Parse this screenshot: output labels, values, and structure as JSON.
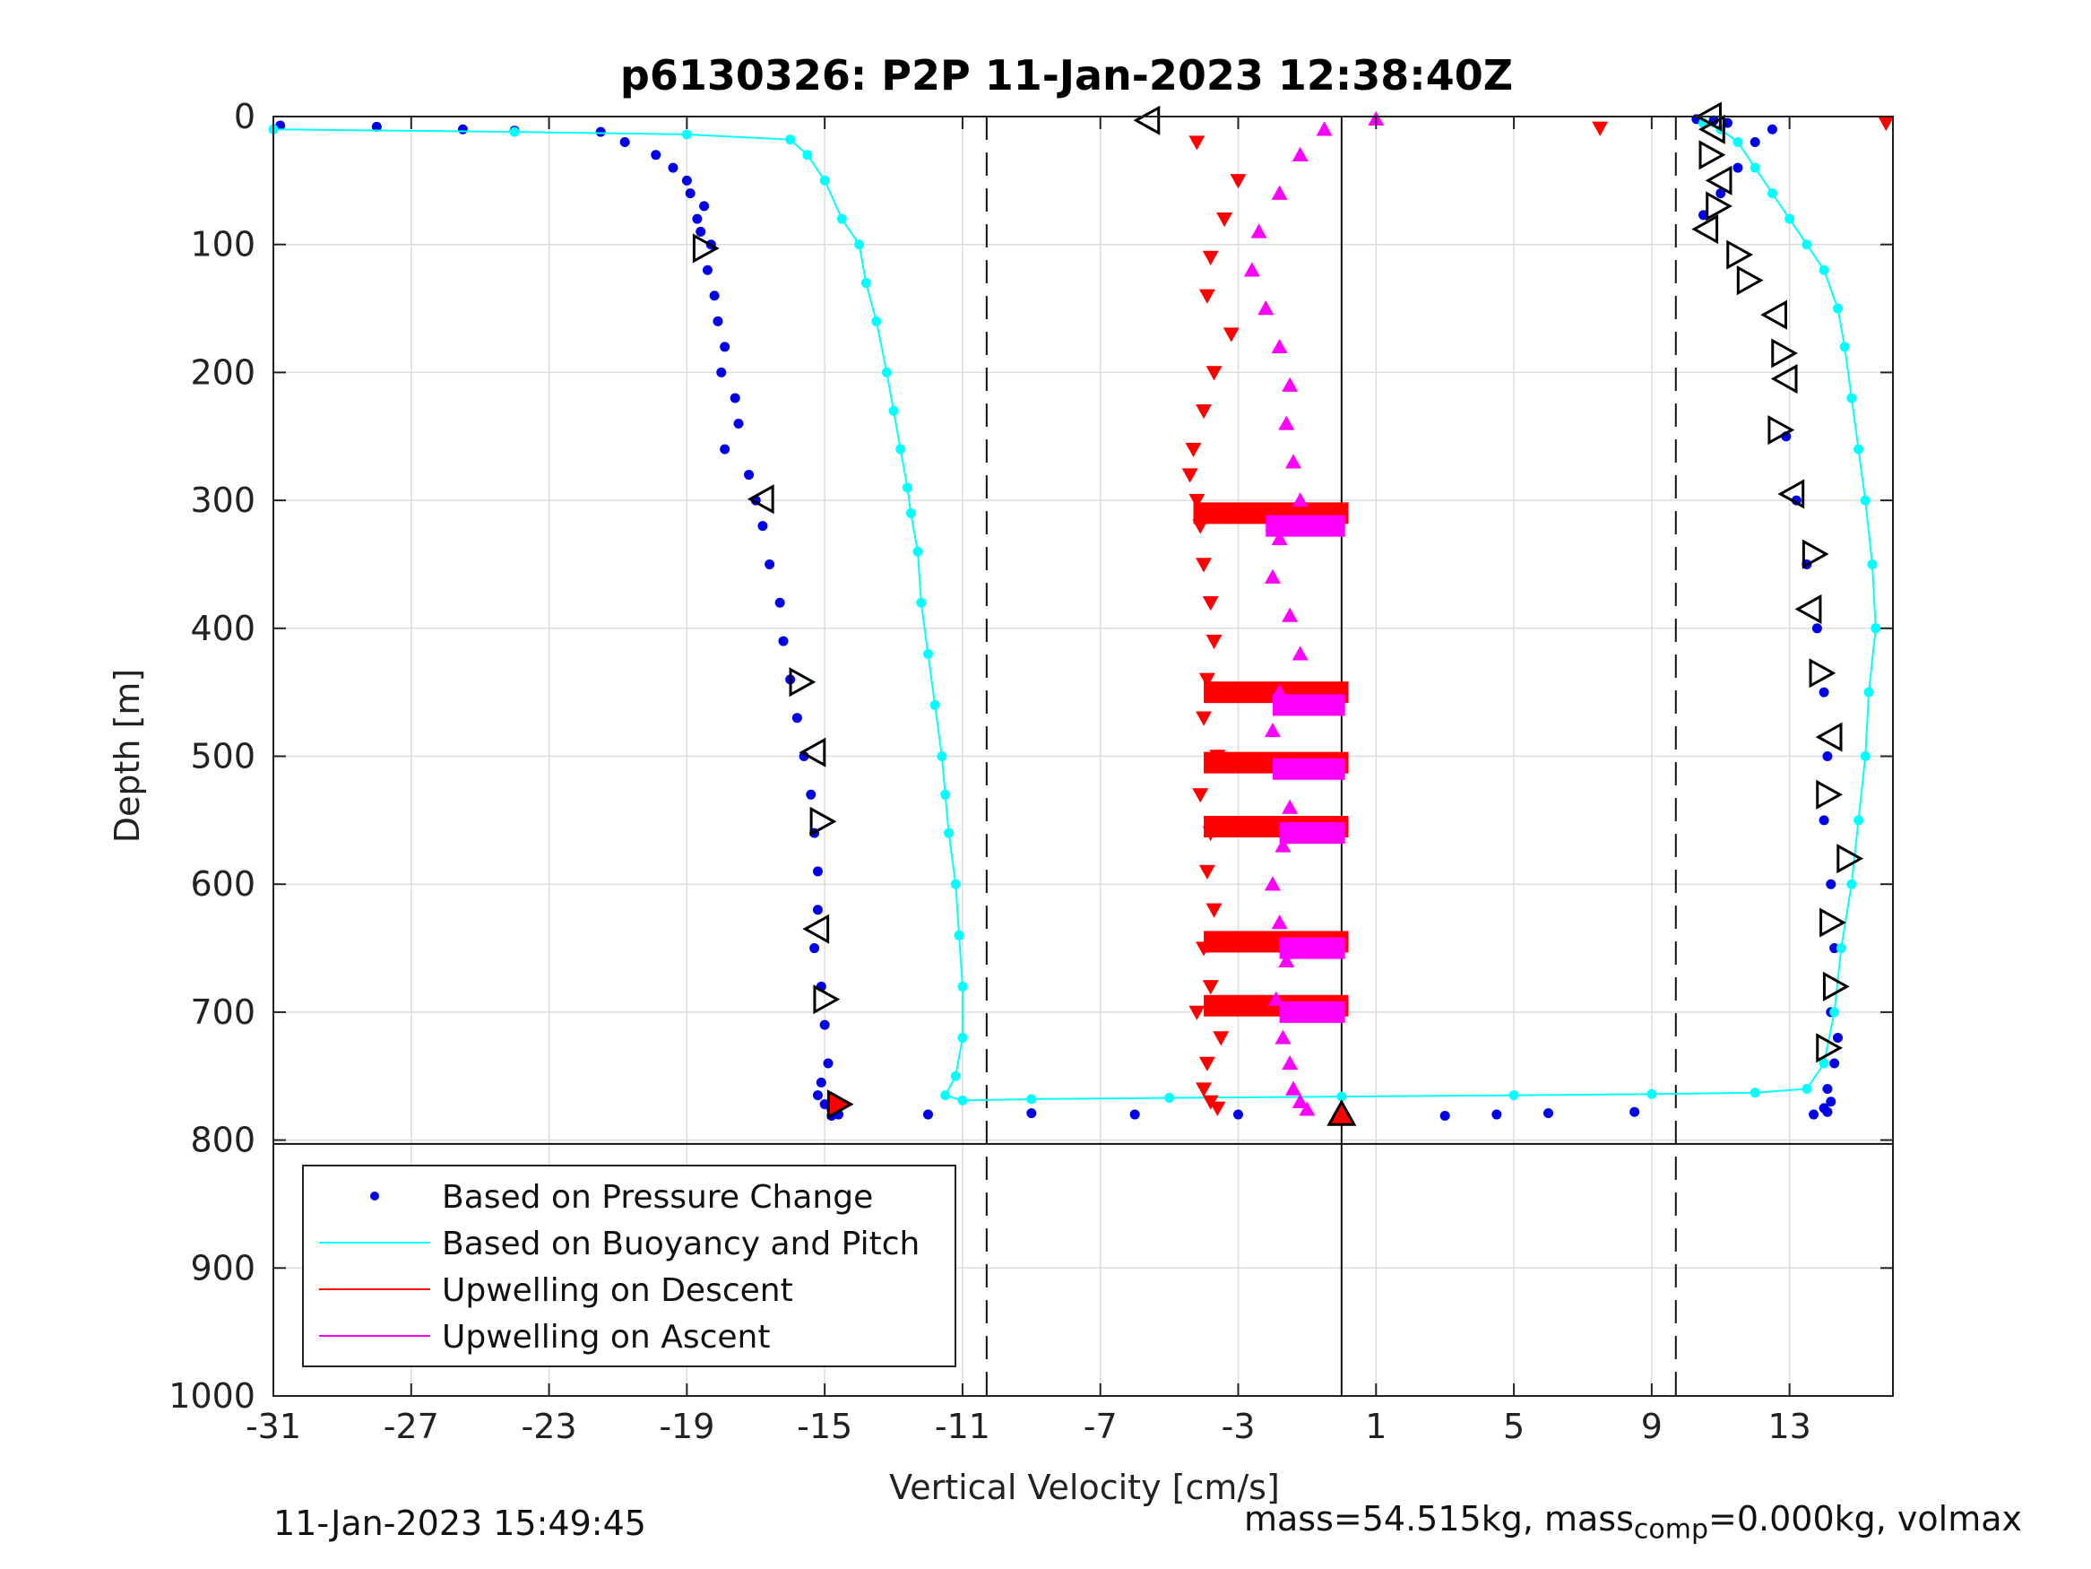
{
  "chart_data": {
    "type": "scatter",
    "title": "p6130326: P2P 11-Jan-2023 12:38:40Z",
    "xlabel": "Vertical Velocity [cm/s]",
    "ylabel": "Depth [m]",
    "xlim": [
      -31,
      16
    ],
    "ylim": [
      0,
      1000
    ],
    "y_reversed": true,
    "grid": true,
    "x_ticks": [
      -31,
      -27,
      -23,
      -19,
      -15,
      -11,
      -7,
      -3,
      1,
      5,
      9,
      13
    ],
    "x_tick_labels": [
      "-31",
      "-27",
      "-23",
      "-19",
      "-15",
      "-11",
      "-7",
      "-3",
      "1",
      "5",
      "9",
      "13"
    ],
    "y_ticks": [
      0,
      100,
      200,
      300,
      400,
      500,
      600,
      700,
      800,
      900,
      1000
    ],
    "y_tick_labels": [
      "0",
      "100",
      "200",
      "300",
      "400",
      "500",
      "600",
      "700",
      "800",
      "900",
      "1000"
    ],
    "reference_lines": {
      "dashed_x": [
        -10.3,
        9.7
      ],
      "solid_x": [
        0
      ]
    },
    "bottom_line_depth": 803,
    "legend_position": "bottom-left",
    "legend": [
      "Based on Pressure Change",
      "Based on Buoyancy and Pitch",
      "Upwelling on Descent",
      "Upwelling on Ascent"
    ],
    "colors": {
      "pressure": "#0000e6",
      "buoyancy": "#00ffff",
      "descent": "#ff0000",
      "ascent": "#ff00ff"
    },
    "series": [
      {
        "name": "Based on Pressure Change",
        "style": "dots",
        "x": [
          -30.8,
          -28.0,
          -25.5,
          -24.0,
          -21.5,
          -20.8,
          -19.9,
          -19.4,
          -19.0,
          -18.9,
          -18.5,
          -18.7,
          -18.6,
          -18.3,
          -18.4,
          -18.2,
          -18.1,
          -17.9,
          -18.0,
          -17.6,
          -17.5,
          -17.9,
          -17.2,
          -17.0,
          -16.8,
          -16.6,
          -16.3,
          -16.2,
          -16.0,
          -15.8,
          -15.6,
          -15.4,
          -15.3,
          -15.2,
          -15.2,
          -15.3,
          -15.1,
          -15.0,
          -14.9,
          -15.1,
          -15.2,
          -15.0,
          -14.8,
          -14.7,
          -14.7,
          -14.6,
          -14.8,
          -12.0,
          -9.0,
          -6.0,
          -3.0,
          0.0,
          3.0,
          4.5,
          6.0,
          8.5,
          10.5,
          11.0,
          11.5,
          12.0,
          12.5,
          12.9,
          13.2,
          13.5,
          13.8,
          14.0,
          14.1,
          14.0,
          14.2,
          14.3,
          14.2,
          14.4,
          14.3,
          14.1,
          14.2,
          14.0,
          14.1,
          13.7,
          11.2,
          10.8,
          10.3
        ],
        "y": [
          7,
          8,
          10,
          11,
          12,
          20,
          30,
          40,
          50,
          60,
          70,
          80,
          90,
          100,
          120,
          140,
          160,
          180,
          200,
          220,
          240,
          260,
          280,
          300,
          320,
          350,
          380,
          410,
          440,
          470,
          500,
          530,
          560,
          590,
          620,
          650,
          680,
          710,
          740,
          755,
          765,
          772,
          776,
          778,
          779,
          780,
          781,
          780,
          779,
          780,
          780,
          781,
          781,
          780,
          779,
          778,
          77,
          60,
          40,
          20,
          10,
          250,
          300,
          350,
          400,
          450,
          500,
          550,
          600,
          650,
          700,
          720,
          740,
          760,
          770,
          775,
          778,
          780,
          5,
          3,
          2
        ]
      },
      {
        "name": "Based on Buoyancy and Pitch",
        "style": "line+dots",
        "x": [
          -31.0,
          -24.0,
          -19.0,
          -16.0,
          -15.5,
          -15.0,
          -14.5,
          -14.0,
          -13.8,
          -13.5,
          -13.2,
          -13.0,
          -12.8,
          -12.6,
          -12.5,
          -12.3,
          -12.2,
          -12.0,
          -11.8,
          -11.6,
          -11.5,
          -11.4,
          -11.2,
          -11.1,
          -11.0,
          -11.0,
          -11.2,
          -11.5,
          -11.0,
          -9.0,
          -5.0,
          0.0,
          5.0,
          9.0,
          12.0,
          13.5,
          14.0,
          14.3,
          14.5,
          14.8,
          15.0,
          15.2,
          15.3,
          15.5,
          15.4,
          15.2,
          15.0,
          14.8,
          14.6,
          14.4,
          14.0,
          13.5,
          13.0,
          12.5,
          12.0,
          11.5,
          11.0,
          10.5
        ],
        "y": [
          10,
          12,
          14,
          18,
          30,
          50,
          80,
          100,
          130,
          160,
          200,
          230,
          260,
          290,
          310,
          340,
          380,
          420,
          460,
          500,
          530,
          560,
          600,
          640,
          680,
          720,
          750,
          765,
          769,
          768,
          767,
          766,
          765,
          764,
          763,
          760,
          740,
          700,
          650,
          600,
          550,
          500,
          450,
          400,
          350,
          300,
          260,
          220,
          180,
          150,
          120,
          100,
          80,
          60,
          40,
          20,
          10,
          5
        ]
      },
      {
        "name": "Upwelling on Descent",
        "style": "down-triangles",
        "x": [
          -4.2,
          -3.0,
          -3.4,
          -3.8,
          -3.9,
          -3.2,
          -3.7,
          -4.0,
          -4.3,
          -4.4,
          -4.2,
          -4.1,
          -4.0,
          -3.8,
          -3.7,
          -3.9,
          -4.0,
          -3.6,
          -4.1,
          -3.8,
          -3.9,
          -3.7,
          -4.0,
          -3.8,
          -4.2,
          -3.5,
          -3.9,
          -4.0,
          -3.8,
          -3.6,
          7.5,
          15.8
        ],
        "y": [
          20,
          50,
          80,
          110,
          140,
          170,
          200,
          230,
          260,
          280,
          300,
          320,
          350,
          380,
          410,
          440,
          470,
          500,
          530,
          560,
          590,
          620,
          650,
          680,
          700,
          720,
          740,
          760,
          770,
          775,
          9,
          5
        ],
        "bands": [
          {
            "depth": 310,
            "x_from": -4.3,
            "x_to": 0.2
          },
          {
            "depth": 450,
            "x_from": -4.0,
            "x_to": 0.2
          },
          {
            "depth": 505,
            "x_from": -4.0,
            "x_to": 0.2
          },
          {
            "depth": 555,
            "x_from": -4.0,
            "x_to": 0.2
          },
          {
            "depth": 645,
            "x_from": -4.0,
            "x_to": 0.2
          },
          {
            "depth": 695,
            "x_from": -4.0,
            "x_to": 0.2
          }
        ]
      },
      {
        "name": "Upwelling on Ascent",
        "style": "up-triangles",
        "x": [
          1.0,
          -0.5,
          -1.2,
          -1.8,
          -2.4,
          -2.6,
          -2.2,
          -1.8,
          -1.5,
          -1.6,
          -1.4,
          -1.2,
          -1.8,
          -2.0,
          -1.5,
          -1.2,
          -1.8,
          -2.0,
          -1.6,
          -1.5,
          -1.7,
          -2.0,
          -1.8,
          -1.6,
          -1.9,
          -1.7,
          -1.5,
          -1.4,
          -1.2,
          -1.0
        ],
        "y": [
          2,
          10,
          30,
          60,
          90,
          120,
          150,
          180,
          210,
          240,
          270,
          300,
          330,
          360,
          390,
          420,
          450,
          480,
          510,
          540,
          570,
          600,
          630,
          660,
          690,
          720,
          740,
          760,
          770,
          776
        ],
        "bands": [
          {
            "depth": 320,
            "x_from": -2.2,
            "x_to": 0.1
          },
          {
            "depth": 460,
            "x_from": -2.0,
            "x_to": 0.1
          },
          {
            "depth": 510,
            "x_from": -2.0,
            "x_to": 0.1
          },
          {
            "depth": 560,
            "x_from": -1.8,
            "x_to": 0.1
          },
          {
            "depth": 650,
            "x_from": -1.8,
            "x_to": 0.1
          },
          {
            "depth": 700,
            "x_from": -1.8,
            "x_to": 0.1
          }
        ]
      }
    ],
    "markers": [
      {
        "shape": "tri-left",
        "x": -5.6,
        "y": 3,
        "fill": "none"
      },
      {
        "shape": "tri-right",
        "x": -18.5,
        "y": 103,
        "fill": "none"
      },
      {
        "shape": "tri-left",
        "x": -16.8,
        "y": 299,
        "fill": "none"
      },
      {
        "shape": "tri-right",
        "x": -15.7,
        "y": 442,
        "fill": "none"
      },
      {
        "shape": "tri-left",
        "x": -15.3,
        "y": 497,
        "fill": "none"
      },
      {
        "shape": "tri-right",
        "x": -15.1,
        "y": 551,
        "fill": "none"
      },
      {
        "shape": "tri-left",
        "x": -15.2,
        "y": 635,
        "fill": "none"
      },
      {
        "shape": "tri-right",
        "x": -15.0,
        "y": 690,
        "fill": "none"
      },
      {
        "shape": "tri-right",
        "x": -14.6,
        "y": 772,
        "fill": "red"
      },
      {
        "shape": "tri-up",
        "x": 0.0,
        "y": 780,
        "fill": "red"
      },
      {
        "shape": "tri-left",
        "x": 10.8,
        "y": 10,
        "fill": "none"
      },
      {
        "shape": "tri-right",
        "x": 10.7,
        "y": 30,
        "fill": "none"
      },
      {
        "shape": "tri-left",
        "x": 11.0,
        "y": 50,
        "fill": "none"
      },
      {
        "shape": "tri-right",
        "x": 10.9,
        "y": 70,
        "fill": "none"
      },
      {
        "shape": "tri-left",
        "x": 10.6,
        "y": 88,
        "fill": "none"
      },
      {
        "shape": "tri-right",
        "x": 11.5,
        "y": 108,
        "fill": "none"
      },
      {
        "shape": "tri-right",
        "x": 11.8,
        "y": 128,
        "fill": "none"
      },
      {
        "shape": "tri-left",
        "x": 12.6,
        "y": 155,
        "fill": "none"
      },
      {
        "shape": "tri-right",
        "x": 12.8,
        "y": 185,
        "fill": "none"
      },
      {
        "shape": "tri-left",
        "x": 12.9,
        "y": 205,
        "fill": "none"
      },
      {
        "shape": "tri-right",
        "x": 12.7,
        "y": 245,
        "fill": "none"
      },
      {
        "shape": "tri-left",
        "x": 13.1,
        "y": 295,
        "fill": "none"
      },
      {
        "shape": "tri-right",
        "x": 13.7,
        "y": 342,
        "fill": "none"
      },
      {
        "shape": "tri-left",
        "x": 13.6,
        "y": 385,
        "fill": "none"
      },
      {
        "shape": "tri-right",
        "x": 13.9,
        "y": 435,
        "fill": "none"
      },
      {
        "shape": "tri-left",
        "x": 14.2,
        "y": 485,
        "fill": "none"
      },
      {
        "shape": "tri-right",
        "x": 14.1,
        "y": 530,
        "fill": "none"
      },
      {
        "shape": "tri-right",
        "x": 14.7,
        "y": 580,
        "fill": "none"
      },
      {
        "shape": "tri-right",
        "x": 14.2,
        "y": 630,
        "fill": "none"
      },
      {
        "shape": "tri-right",
        "x": 14.3,
        "y": 680,
        "fill": "none"
      },
      {
        "shape": "tri-right",
        "x": 14.1,
        "y": 728,
        "fill": "none"
      },
      {
        "shape": "tri-left",
        "x": 10.7,
        "y": 0,
        "fill": "none"
      }
    ]
  },
  "footer": {
    "timestamp": "11-Jan-2023 15:49:45",
    "mass_text_prefix": "mass=54.515kg, mass",
    "mass_text_sub": "comp",
    "mass_text_suffix": "=0.000kg, volmax"
  }
}
